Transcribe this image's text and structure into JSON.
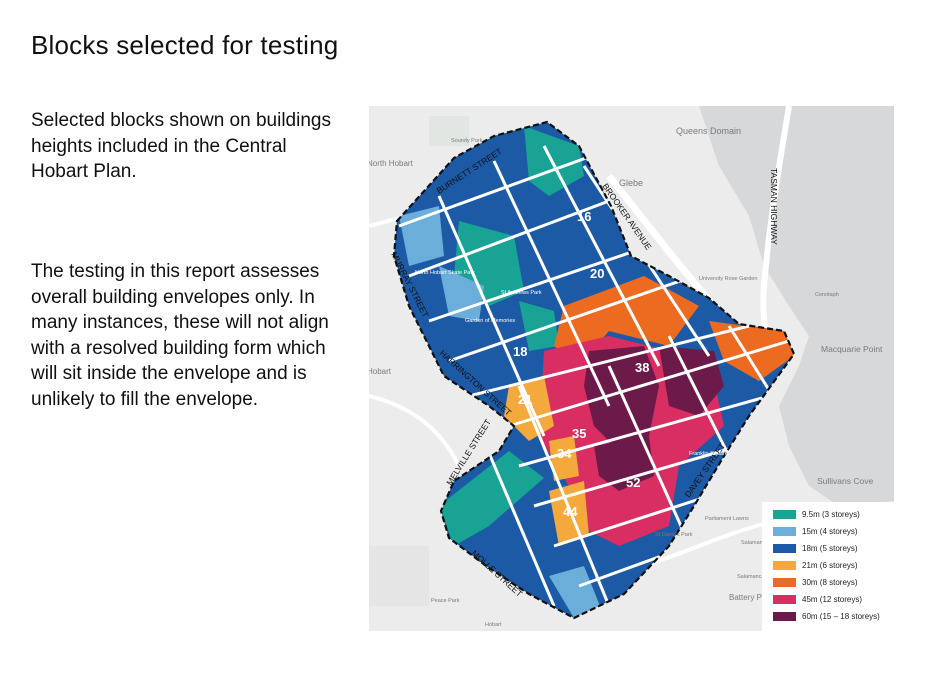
{
  "page": {
    "title": "Blocks selected for testing",
    "paragraph_1": "Selected blocks shown on buildings heights included in the Central Hobart Plan.",
    "paragraph_2": "The testing in this report assesses overall building envelopes only. In many instances, these will not align with a resolved building form which will sit inside the envelope and is unlikely to fill the envelope."
  },
  "map": {
    "colors": {
      "h9_5": "#18a394",
      "h15": "#6aaed9",
      "h18": "#1c5aa6",
      "h21": "#f3a93b",
      "h30": "#ec6b21",
      "h45": "#d92e62",
      "h60": "#6b1a4a",
      "background": "#ececec",
      "water": "#d6d8da",
      "road": "#ffffff"
    },
    "street_labels": {
      "burnett": "BURNETT STREET",
      "brooker": "BROOKER AVENUE",
      "tasman": "TASMAN HIGHWAY",
      "murray": "MURRAY STREET",
      "harrington": "HARRINGTON STREET",
      "melville": "MELVILLE STREET",
      "davey": "DAVEY STREET",
      "molle": "MOLLE STREET"
    },
    "place_labels": {
      "queens_domain": "Queens Domain",
      "glebe": "Glebe",
      "north_hobart": "North Hobart",
      "soundy_park": "Soundy Park",
      "university_rose_garden": "University Rose Garden",
      "cenotaph": "Cenotaph",
      "macquarie_point": "Macquarie Point",
      "north_hobart_skate_park": "North Hobart Skate Park",
      "st_andrews_park": "St Andrews Park",
      "garden_of_memories": "Garden of Memories",
      "hobart": "Hobart",
      "franklin_square": "Franklin Square",
      "sullivans_cove": "Sullivans Cove",
      "parliament_lawns": "Parliament Lawns",
      "st_davids_park": "St David's Park",
      "salamanca_lawn": "Salamanca Lawn",
      "salamanca_square": "Salamanca Square",
      "battery_point": "Battery P",
      "peace_park": "Peace Park",
      "hobart_bottom": "Hobart"
    },
    "block_labels": {
      "b16": "16",
      "b20": "20",
      "b18": "18",
      "b21": "21",
      "b38": "38",
      "b35": "35",
      "b34": "34",
      "b52": "52",
      "b44": "44"
    }
  },
  "legend": {
    "items": [
      {
        "label": "9.5m (3 storeys)",
        "color": "#18a394"
      },
      {
        "label": "15m (4 storeys)",
        "color": "#6aaed9"
      },
      {
        "label": "18m (5 storeys)",
        "color": "#1c5aa6"
      },
      {
        "label": "21m (6 storeys)",
        "color": "#f3a93b"
      },
      {
        "label": "30m (8 storeys)",
        "color": "#ec6b21"
      },
      {
        "label": "45m (12 storeys)",
        "color": "#d92e62"
      },
      {
        "label": "60m (15 – 18 storeys)",
        "color": "#6b1a4a"
      }
    ]
  }
}
